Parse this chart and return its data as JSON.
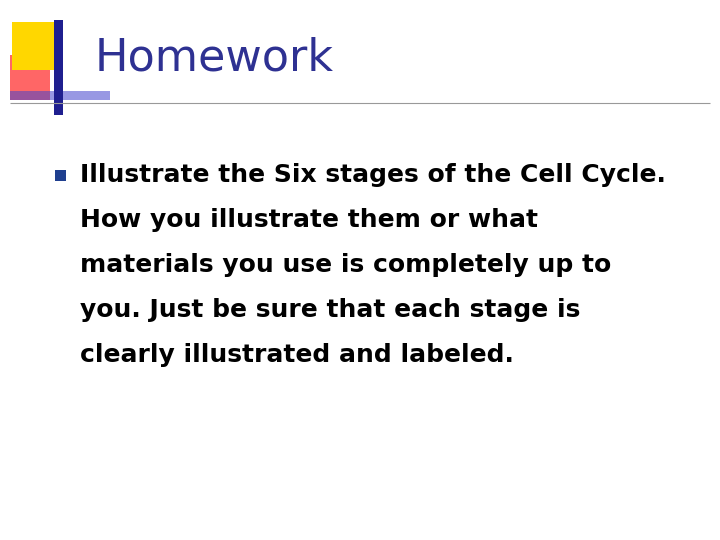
{
  "title": "Homework",
  "title_color": "#2E3192",
  "title_fontsize": 32,
  "bullet_lines": [
    "Illustrate the Six stages of the Cell Cycle.",
    "How you illustrate them or what",
    "materials you use is completely up to",
    "you. Just be sure that each stage is",
    "clearly illustrated and labeled."
  ],
  "bullet_color": "#000000",
  "bullet_fontsize": 18,
  "background_color": "#FFFFFF",
  "bullet_marker_color": "#1F3F8F",
  "separator_color": "#999999",
  "deco_yellow": "#FFD700",
  "deco_red": "#FF3333",
  "deco_blue_dark": "#1F1F8F",
  "deco_blue_light": "#4444CC"
}
